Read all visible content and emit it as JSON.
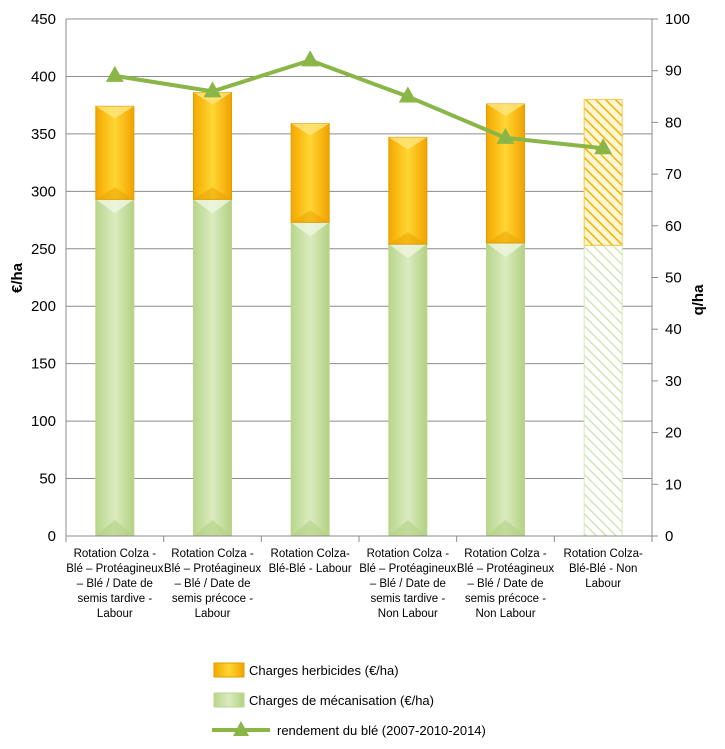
{
  "chart_data": {
    "type": "bar",
    "stacked": true,
    "categories": [
      [
        "Rotation Colza -",
        "Blé – Protéagineux",
        "– Blé / Date de",
        "semis tardive -",
        "Labour"
      ],
      [
        "Rotation Colza -",
        "Blé – Protéagineux",
        "– Blé / Date de",
        "semis précoce -",
        "Labour"
      ],
      [
        "Rotation Colza-",
        "Blé-Blé - Labour"
      ],
      [
        "Rotation Colza -",
        "Blé – Protéagineux",
        "– Blé / Date de",
        "semis tardive -",
        "Non Labour"
      ],
      [
        "Rotation Colza -",
        "Blé – Protéagineux",
        "– Blé / Date de",
        "semis précoce -",
        "Non Labour"
      ],
      [
        "Rotation Colza-",
        "Blé-Blé - Non",
        "Labour"
      ]
    ],
    "series": [
      {
        "name": "Charges de mécanisation (€/ha)",
        "kind": "bar",
        "axis": "left",
        "values": [
          293,
          293,
          273,
          254,
          255,
          253
        ],
        "color": "#c6dfa0"
      },
      {
        "name": "Charges herbicides (€/ha)",
        "kind": "bar",
        "axis": "left",
        "values": [
          81,
          93,
          86,
          93,
          121,
          127
        ],
        "color": "#ffc000"
      },
      {
        "name": "rendement du blé (2007-2010-2014)",
        "kind": "line",
        "axis": "right",
        "values": [
          89,
          86,
          92,
          85,
          77,
          75
        ],
        "color": "#8ab547"
      }
    ],
    "hatched_category_index": 5,
    "y_left": {
      "label": "€/ha",
      "min": 0,
      "max": 450,
      "step": 50
    },
    "y_right": {
      "label": "q/ha",
      "min": 0,
      "max": 100,
      "step": 10
    },
    "grid": true,
    "legend_position": "bottom"
  }
}
